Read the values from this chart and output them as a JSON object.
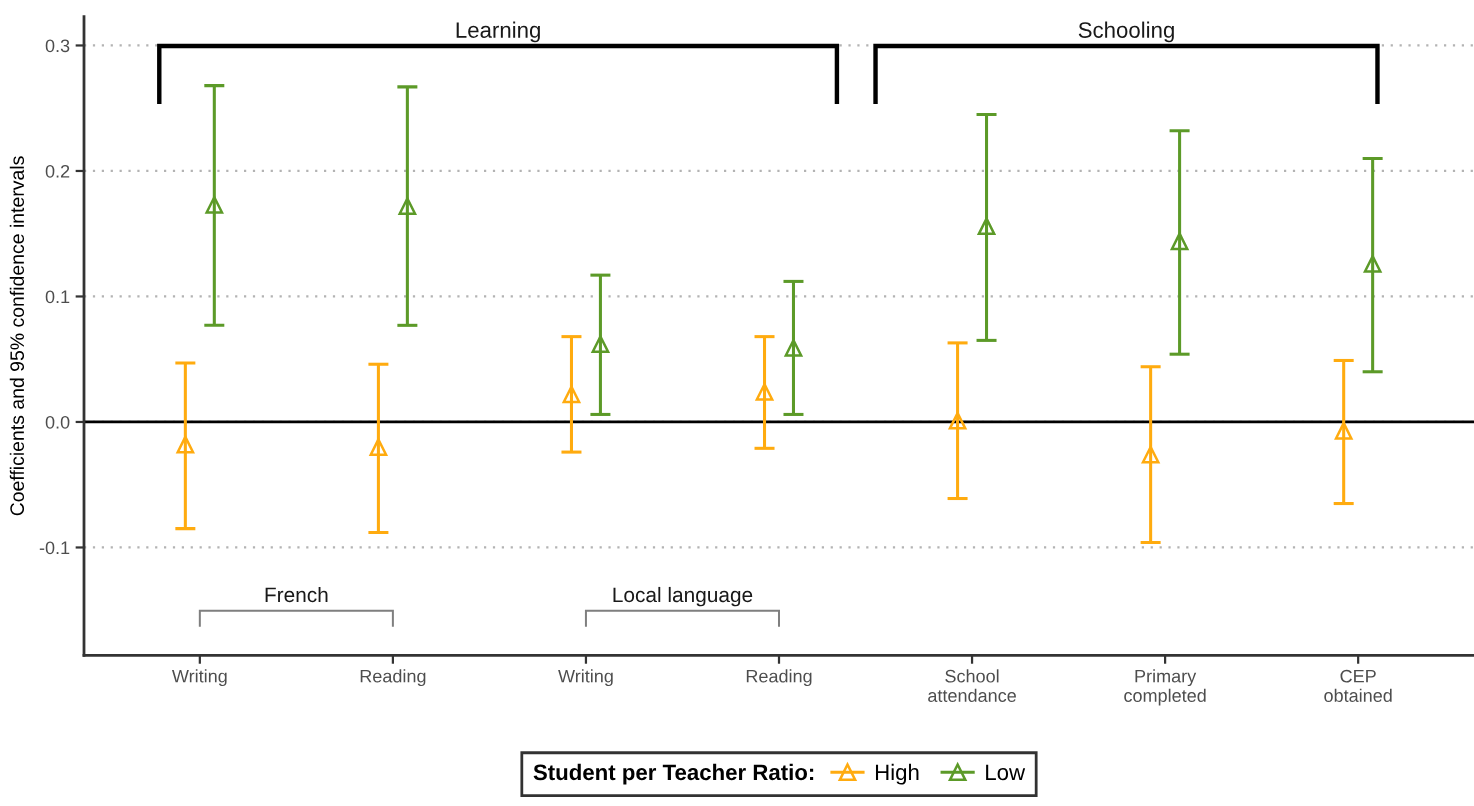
{
  "chart_data": {
    "type": "scatter",
    "ylabel": "Coefficients and 95% confidence intervals",
    "legend_title": "Student per Teacher Ratio:",
    "categories": [
      "Writing",
      "Reading",
      "Writing",
      "Reading",
      "School\nattendance",
      "Primary\ncompleted",
      "CEP\nobtained"
    ],
    "series": [
      {
        "name": "High",
        "color": "#ffab0f",
        "values": [
          -0.018,
          -0.02,
          0.022,
          0.024,
          0.001,
          -0.026,
          -0.007
        ],
        "errors": [
          [
            -0.085,
            0.047
          ],
          [
            -0.088,
            0.046
          ],
          [
            -0.024,
            0.068
          ],
          [
            -0.021,
            0.068
          ],
          [
            -0.061,
            0.063
          ],
          [
            -0.096,
            0.044
          ],
          [
            -0.065,
            0.049
          ]
        ]
      },
      {
        "name": "Low",
        "color": "#5c9a28",
        "values": [
          0.173,
          0.172,
          0.062,
          0.059,
          0.156,
          0.144,
          0.126
        ],
        "errors": [
          [
            0.077,
            0.268
          ],
          [
            0.077,
            0.267
          ],
          [
            0.006,
            0.117
          ],
          [
            0.006,
            0.112
          ],
          [
            0.065,
            0.245
          ],
          [
            0.054,
            0.232
          ],
          [
            0.04,
            0.21
          ]
        ]
      }
    ],
    "ylim": [
      -0.186,
      0.323
    ],
    "yticks": [
      -0.1,
      {
        "value": 0,
        "label": "0.0"
      },
      0.1,
      0.2,
      0.3
    ],
    "ref_lines": [
      {
        "axis": "y",
        "value": 0,
        "color": "#000000"
      }
    ],
    "grid": "y",
    "legend": "bottom",
    "marker": "triangle",
    "annotations": [
      "Learning",
      "Schooling",
      "French",
      "Local language"
    ]
  }
}
